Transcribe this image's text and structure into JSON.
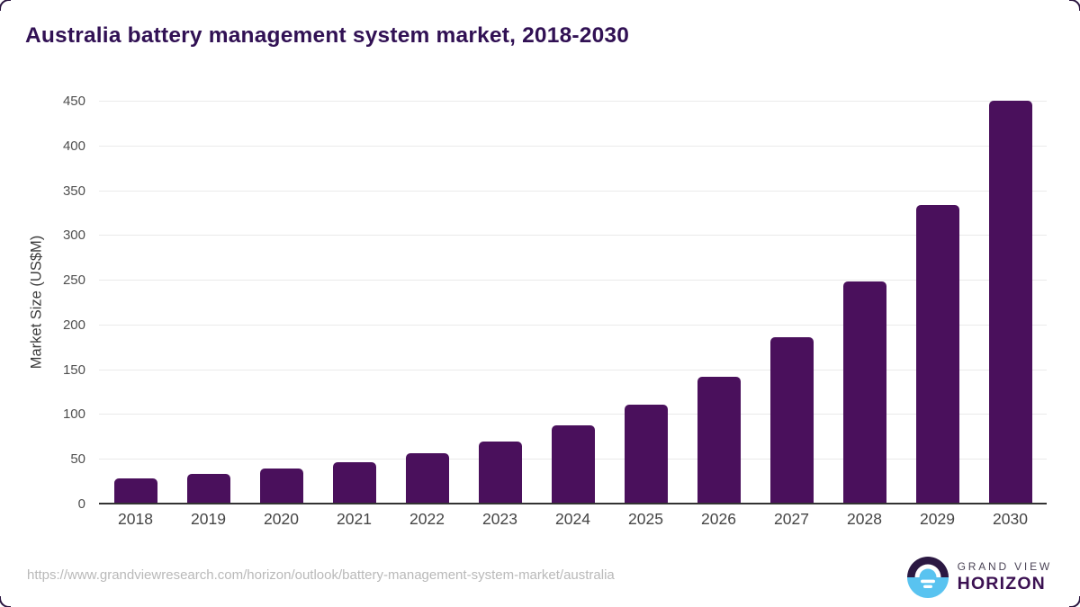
{
  "title": "Australia battery management system market, 2018-2030",
  "chart_data": {
    "type": "bar",
    "title": "Australia battery management system market, 2018-2030",
    "categories": [
      "2018",
      "2019",
      "2020",
      "2021",
      "2022",
      "2023",
      "2024",
      "2025",
      "2026",
      "2027",
      "2028",
      "2029",
      "2030"
    ],
    "values": [
      27,
      32,
      38,
      45,
      55,
      68,
      86,
      110,
      141,
      185,
      247,
      332,
      449
    ],
    "xlabel": "",
    "ylabel": "Market Size (US$M)",
    "ylim": [
      0,
      450
    ],
    "yticks": [
      0,
      50,
      100,
      150,
      200,
      250,
      300,
      350,
      400,
      450
    ],
    "grid": "horizontal",
    "legend": "none",
    "bar_color": "#4a105c"
  },
  "colors": {
    "title_text": "#311154",
    "bar": "#4a105c",
    "gridline": "#eaeaea",
    "axis_line": "#333333",
    "tick_text": "#4f4f4f",
    "logo_dark": "#2b1842",
    "logo_blue": "#59c3f0"
  },
  "footer": {
    "source_url": "https://www.grandviewresearch.com/horizon/outlook/battery-management-system-market/australia",
    "logo": {
      "line1": "GRAND VIEW",
      "line2": "HORIZON"
    }
  }
}
